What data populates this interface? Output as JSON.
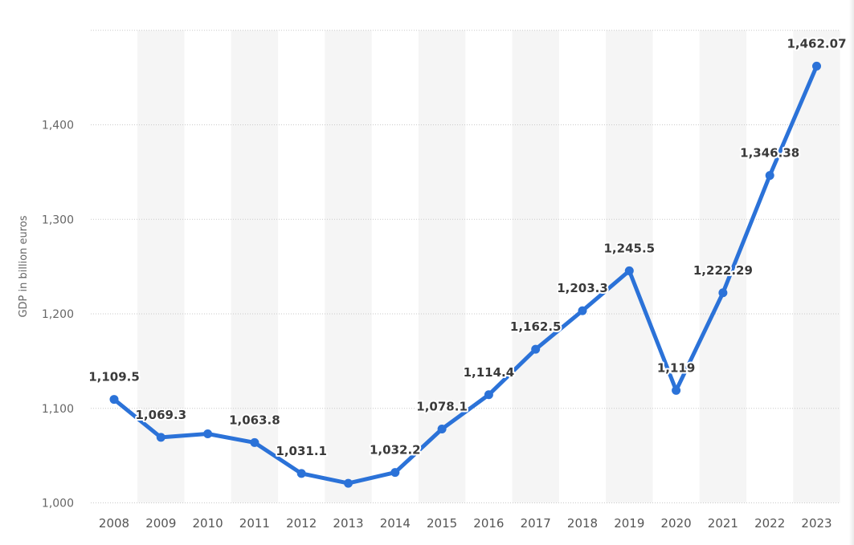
{
  "chart_data": {
    "type": "line",
    "title": "",
    "xlabel": "",
    "ylabel": "GDP in billion euros",
    "categories": [
      "2008",
      "2009",
      "2010",
      "2011",
      "2012",
      "2013",
      "2014",
      "2015",
      "2016",
      "2017",
      "2018",
      "2019",
      "2020",
      "2021",
      "2022",
      "2023"
    ],
    "series": [
      {
        "values": [
          1109.5,
          1069.3,
          1073.0,
          1063.8,
          1031.1,
          1020.7,
          1032.2,
          1078.1,
          1114.4,
          1162.5,
          1203.3,
          1245.5,
          1119,
          1222.29,
          1346.38,
          1462.07
        ],
        "labels": [
          "1,109.5",
          "1,069.3",
          "",
          "1,063.8",
          "1,031.1",
          "",
          "1,032.2",
          "1,078.1",
          "1,114.4",
          "1,162.5",
          "1,203.3",
          "1,245.5",
          "1,119",
          "1,222.29",
          "1,346.38",
          "1,462.07"
        ]
      }
    ],
    "yticks": [
      1000,
      1100,
      1200,
      1300,
      1400
    ],
    "ytick_labels": [
      "1,000",
      "1,100",
      "1,200",
      "1,300",
      "1,400"
    ],
    "ylim": [
      1000,
      1500
    ],
    "grid": true,
    "legend": "none",
    "line_color": "#2b72d8"
  }
}
